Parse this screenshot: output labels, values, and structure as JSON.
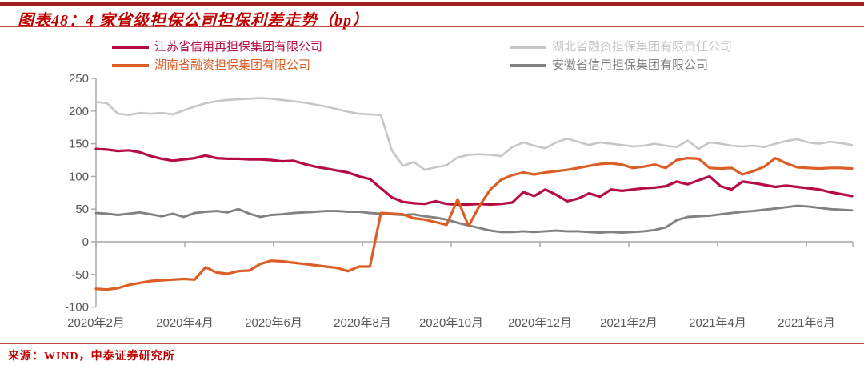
{
  "figure": {
    "title": "图表48：4 家省级担保公司担保利差走势（bp）",
    "source": "来源：WIND，中泰证券研究所"
  },
  "colors": {
    "crimson": "#B50D41",
    "orange": "#DB5E26",
    "light_gray": "#C6C6C6",
    "dark_gray": "#818181",
    "title_red": "#C00000",
    "top_bar_red": "#A32020",
    "rule_red": "#C14744",
    "axis_text": "#595959",
    "axis_line": "#A6A6A6"
  },
  "legend": {
    "items": [
      {
        "label": "江苏省信用再担保集团有限公司",
        "color": "crimson",
        "col": 0,
        "row": 0
      },
      {
        "label": "湖南省融资担保集团有限公司",
        "color": "orange",
        "col": 0,
        "row": 1
      },
      {
        "label": "湖北省融资担保集团有限责任公司",
        "color": "light_gray",
        "col": 1,
        "row": 0
      },
      {
        "label": "安徽省信用担保集团有限公司",
        "color": "dark_gray",
        "col": 1,
        "row": 1
      }
    ]
  },
  "chart_data": {
    "type": "line",
    "title": "4 家省级担保公司担保利差走势",
    "unit": "bp",
    "ylim": [
      -100,
      250
    ],
    "y_ticks": [
      250,
      200,
      150,
      100,
      50,
      0,
      -50,
      -100
    ],
    "zero_baseline_axis": true,
    "grid": "off",
    "legend_position": "top",
    "x_tick_labels": [
      "2020年2月",
      "2020年4月",
      "2020年6月",
      "2020年8月",
      "2020年10月",
      "2020年12月",
      "2021年2月",
      "2021年4月",
      "2021年6月"
    ],
    "x_note": "weekly observations, Feb 2020 - Jun 2021",
    "series": [
      {
        "name": "湖北省融资担保集团有限责任公司",
        "color": "light_gray",
        "values": [
          214,
          212,
          196,
          194,
          197,
          196,
          197,
          195,
          201,
          207,
          212,
          215,
          217,
          218,
          219,
          220,
          219,
          217,
          215,
          213,
          210,
          207,
          203,
          199,
          196,
          195,
          194,
          140,
          116,
          122,
          110,
          114,
          117,
          129,
          133,
          134,
          133,
          131,
          145,
          152,
          147,
          143,
          152,
          158,
          153,
          148,
          152,
          150,
          148,
          146,
          147,
          150,
          147,
          145,
          155,
          142,
          152,
          150,
          147,
          146,
          147,
          145,
          150,
          154,
          157,
          152,
          150,
          153,
          151,
          148
        ]
      },
      {
        "name": "安徽省信用担保集团有限公司",
        "color": "dark_gray",
        "values": [
          44,
          43,
          41,
          43,
          45,
          42,
          39,
          43,
          38,
          44,
          46,
          47,
          45,
          50,
          43,
          38,
          41,
          42,
          44,
          45,
          46,
          47,
          47,
          46,
          46,
          44,
          43,
          42,
          41,
          42,
          39,
          37,
          34,
          29,
          25,
          21,
          17,
          15,
          15,
          16,
          15,
          16,
          17,
          16,
          16,
          15,
          14,
          15,
          14,
          15,
          16,
          18,
          22,
          33,
          38,
          39,
          40,
          42,
          44,
          46,
          47,
          49,
          51,
          53,
          55,
          54,
          52,
          50,
          49,
          48
        ]
      },
      {
        "name": "江苏省信用再担保集团有限公司",
        "color": "crimson",
        "values": [
          142,
          141,
          139,
          140,
          137,
          131,
          127,
          124,
          126,
          128,
          132,
          128,
          127,
          127,
          126,
          126,
          125,
          123,
          124,
          119,
          115,
          112,
          109,
          106,
          100,
          96,
          82,
          68,
          61,
          59,
          58,
          62,
          58,
          57,
          57,
          58,
          57,
          58,
          60,
          76,
          70,
          80,
          72,
          62,
          66,
          74,
          69,
          80,
          78,
          80,
          82,
          83,
          85,
          92,
          88,
          94,
          100,
          85,
          80,
          92,
          90,
          87,
          84,
          86,
          84,
          82,
          80,
          76,
          73,
          70
        ]
      },
      {
        "name": "湖南省融资担保集团有限公司",
        "color": "orange",
        "values": [
          -72,
          -73,
          -71,
          -66,
          -63,
          -60,
          -59,
          -58,
          -57,
          -58,
          -39,
          -47,
          -49,
          -45,
          -44,
          -34,
          -29,
          -30,
          -32,
          -34,
          -36,
          -38,
          -40,
          -45,
          -38,
          -38,
          44,
          43,
          42,
          36,
          34,
          30,
          26,
          65,
          24,
          55,
          80,
          95,
          102,
          106,
          103,
          106,
          108,
          110,
          113,
          116,
          119,
          120,
          118,
          113,
          115,
          118,
          113,
          125,
          128,
          127,
          113,
          112,
          113,
          103,
          108,
          115,
          128,
          120,
          114,
          113,
          112,
          113,
          113,
          112
        ]
      }
    ]
  }
}
